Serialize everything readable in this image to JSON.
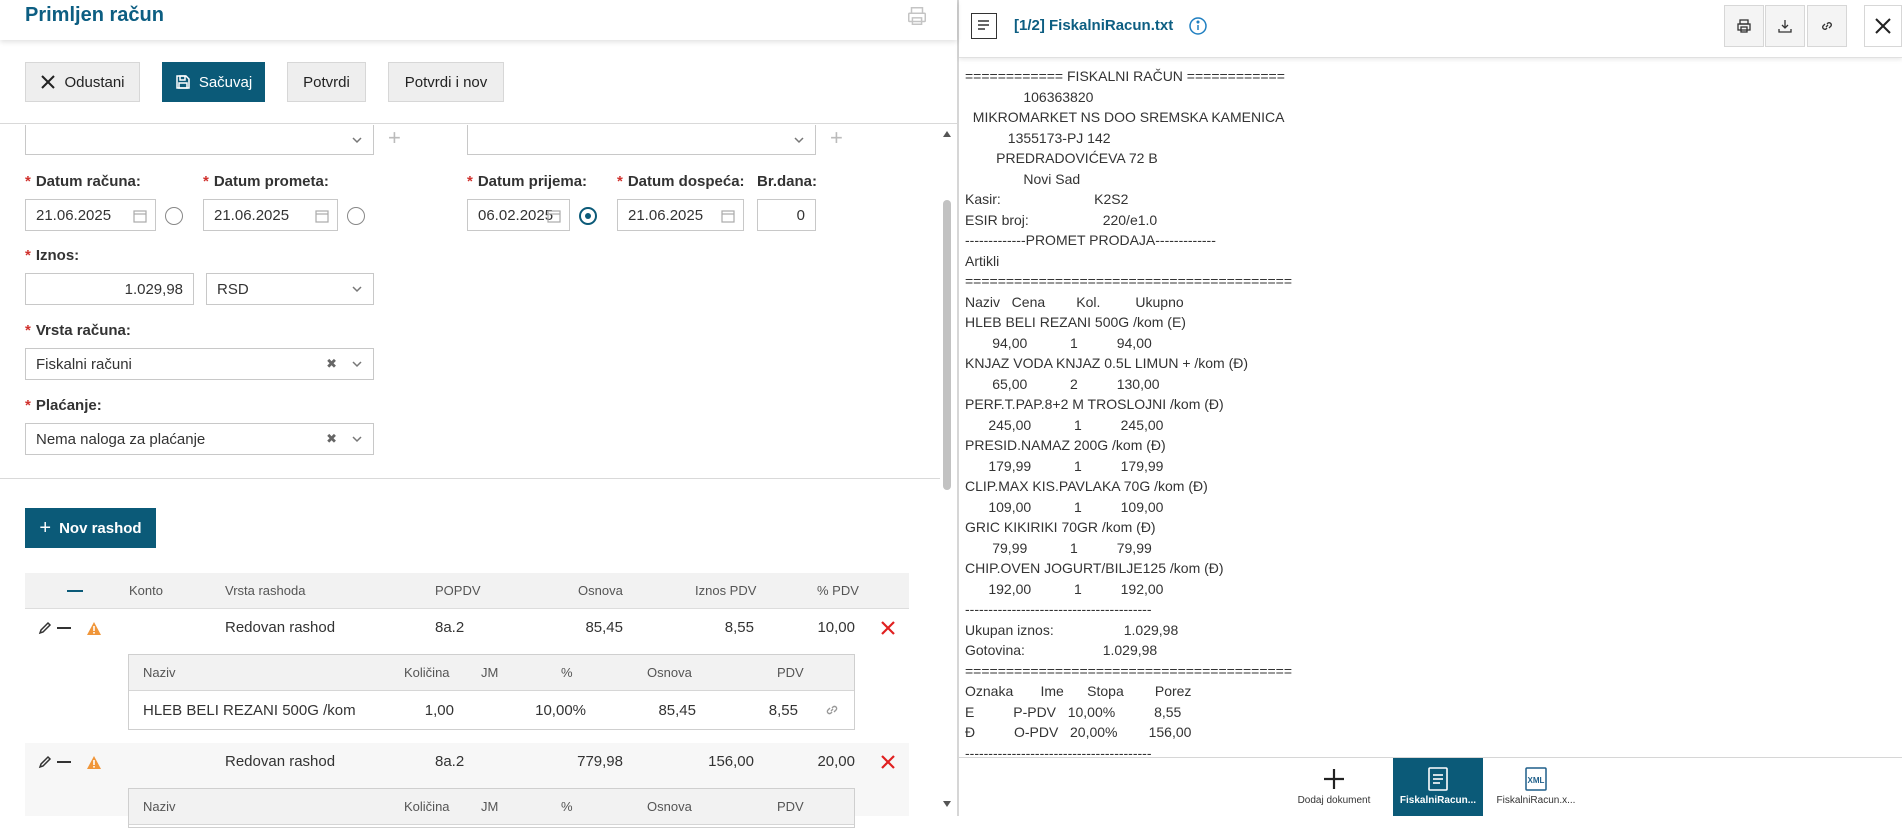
{
  "header": {
    "title": "Primljen račun"
  },
  "toolbar": {
    "cancel": "Odustani",
    "save": "Sačuvaj",
    "confirm": "Potvrdi",
    "confirm_new": "Potvrdi i nov"
  },
  "form": {
    "datum_racuna": {
      "label": "Datum računa:",
      "value": "21.06.2025"
    },
    "datum_prometa": {
      "label": "Datum prometa:",
      "value": "21.06.2025"
    },
    "datum_prijema": {
      "label": "Datum prijema:",
      "value": "06.02.2025"
    },
    "datum_dospeca": {
      "label": "Datum dospeća:",
      "value": "21.06.2025"
    },
    "br_dana": {
      "label": "Br.dana:",
      "value": "0"
    },
    "iznos": {
      "label": "Iznos:",
      "value": "1.029,98",
      "currency": "RSD"
    },
    "vrsta_racuna": {
      "label": "Vrsta računa:",
      "value": "Fiskalni računi"
    },
    "placanje": {
      "label": "Plaćanje:",
      "value": "Nema naloga za plaćanje"
    },
    "required_mark": "*"
  },
  "expenses": {
    "new_button": "Nov rashod",
    "columns": [
      "Konto",
      "Vrsta rashoda",
      "POPDV",
      "Osnova",
      "Iznos PDV",
      "% PDV"
    ],
    "rows": [
      {
        "vrsta": "Redovan rashod",
        "popdv": "8a.2",
        "osnova": "85,45",
        "iznos_pdv": "8,55",
        "pct_pdv": "10,00",
        "sub_columns": [
          "Naziv",
          "Količina",
          "JM",
          "%",
          "Osnova",
          "PDV"
        ],
        "sub_row": {
          "naziv": "HLEB BELI REZANI 500G /kom",
          "kolicina": "1,00",
          "jm": "",
          "pct": "10,00%",
          "osnova": "85,45",
          "pdv": "8,55"
        }
      },
      {
        "vrsta": "Redovan rashod",
        "popdv": "8a.2",
        "osnova": "779,98",
        "iznos_pdv": "156,00",
        "pct_pdv": "20,00",
        "sub_columns": [
          "Naziv",
          "Količina",
          "JM",
          "%",
          "Osnova",
          "PDV"
        ]
      }
    ]
  },
  "document": {
    "title": "[1/2] FiskalniRacun.txt",
    "receipt_lines": [
      "============ FISKALNI RAČUN ============",
      "               106363820",
      "  MIKROMARKET NS DOO SREMSKA KAMENICA",
      "           1355173-PJ 142",
      "        PREDRADOVIĆEVA 72 B",
      "               Novi Sad",
      "Kasir:                        K2S2",
      "ESIR broj:                   220/e1.0",
      "-------------PROMET PRODAJA-------------",
      "Artikli",
      "========================================",
      "Naziv   Cena        Kol.         Ukupno",
      "HLEB BELI REZANI 500G /kom (E)",
      "       94,00           1          94,00",
      "KNJAZ VODA KNJAZ 0.5L LIMUN + /kom (Đ)",
      "       65,00           2          130,00",
      "PERF.T.PAP.8+2 M TROSLOJNI /kom (Đ)",
      "      245,00           1          245,00",
      "PRESID.NAMAZ 200G /kom (Đ)",
      "      179,99           1          179,99",
      "CLIP.MAX KIS.PAVLAKA 70G /kom (Đ)",
      "      109,00           1          109,00",
      "GRIC KIKIRIKI 70GR /kom (Đ)",
      "       79,99           1          79,99",
      "CHIP.OVEN JOGURT/BILJE125 /kom (Đ)",
      "      192,00           1          192,00",
      "----------------------------------------",
      "Ukupan iznos:                  1.029,98",
      "Gotovina:                    1.029,98",
      "========================================",
      "Oznaka       Ime      Stopa        Porez",
      "E          P-PDV   10,00%          8,55",
      "Đ          O-PDV   20,00%        156,00",
      "----------------------------------------"
    ]
  },
  "doc_tabs": {
    "add": "Dodaj dokument",
    "tab1": "FiskalniRacun...",
    "tab2": "FiskalniRacun.x...",
    "xml_badge": "XML"
  },
  "icons": {
    "close": "close-icon",
    "save": "save-icon",
    "print": "print-icon",
    "download": "download-icon",
    "link": "link-icon",
    "info": "info-icon",
    "calendar": "calendar-icon",
    "chevron": "chevron-down-icon",
    "edit": "pencil-icon",
    "warning": "warning-icon",
    "delete": "delete-icon",
    "document": "document-icon"
  },
  "colors": {
    "primary": "#0b5a78",
    "title": "#0d5e82",
    "required": "#d0312d",
    "delete": "#e02020",
    "warning": "#f0963a"
  }
}
